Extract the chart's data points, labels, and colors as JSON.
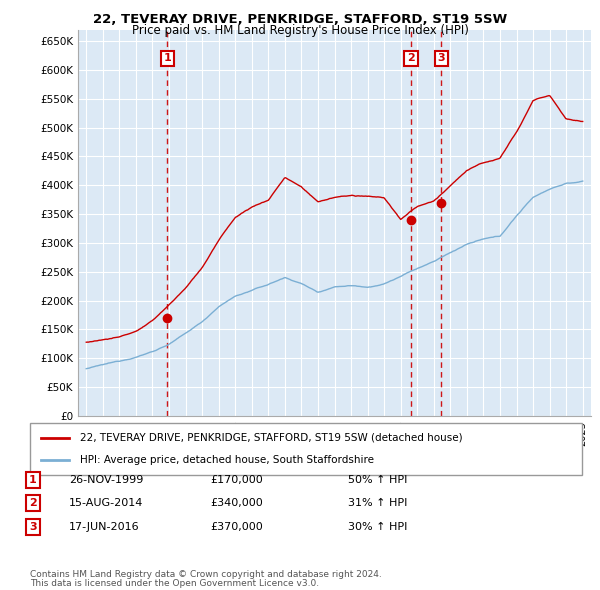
{
  "title": "22, TEVERAY DRIVE, PENKRIDGE, STAFFORD, ST19 5SW",
  "subtitle": "Price paid vs. HM Land Registry's House Price Index (HPI)",
  "property_label": "22, TEVERAY DRIVE, PENKRIDGE, STAFFORD, ST19 5SW (detached house)",
  "hpi_label": "HPI: Average price, detached house, South Staffordshire",
  "ytick_labels": [
    "£0",
    "£50K",
    "£100K",
    "£150K",
    "£200K",
    "£250K",
    "£300K",
    "£350K",
    "£400K",
    "£450K",
    "£500K",
    "£550K",
    "£600K",
    "£650K"
  ],
  "ytick_values": [
    0,
    50000,
    100000,
    150000,
    200000,
    250000,
    300000,
    350000,
    400000,
    450000,
    500000,
    550000,
    600000,
    650000
  ],
  "ymax": 670000,
  "ymin": 0,
  "xmin": 1994.5,
  "xmax": 2025.5,
  "property_color": "#cc0000",
  "hpi_color": "#7bafd4",
  "plot_bg_color": "#dce9f5",
  "background_color": "#ffffff",
  "grid_color": "#ffffff",
  "transactions": [
    {
      "num": 1,
      "date": "26-NOV-1999",
      "price": "£170,000",
      "pct": "50% ↑ HPI",
      "x_year": 1999.9,
      "y_val": 170000
    },
    {
      "num": 2,
      "date": "15-AUG-2014",
      "price": "£340,000",
      "pct": "31% ↑ HPI",
      "x_year": 2014.62,
      "y_val": 340000
    },
    {
      "num": 3,
      "date": "17-JUN-2016",
      "price": "£370,000",
      "pct": "30% ↑ HPI",
      "x_year": 2016.46,
      "y_val": 370000
    }
  ],
  "footer_line1": "Contains HM Land Registry data © Crown copyright and database right 2024.",
  "footer_line2": "This data is licensed under the Open Government Licence v3.0.",
  "hpi_base_years": [
    1995,
    1996,
    1997,
    1998,
    1999,
    2000,
    2001,
    2002,
    2003,
    2004,
    2005,
    2006,
    2007,
    2008,
    2009,
    2010,
    2011,
    2012,
    2013,
    2014,
    2015,
    2016,
    2017,
    2018,
    2019,
    2020,
    2021,
    2022,
    2023,
    2024,
    2025
  ],
  "hpi_base_vals": [
    82000,
    88000,
    94000,
    102000,
    112000,
    125000,
    143000,
    163000,
    190000,
    208000,
    218000,
    228000,
    240000,
    230000,
    215000,
    225000,
    228000,
    226000,
    232000,
    245000,
    258000,
    270000,
    285000,
    300000,
    308000,
    312000,
    348000,
    380000,
    395000,
    405000,
    408000
  ],
  "prop_base_years": [
    1995,
    1996,
    1997,
    1998,
    1999,
    2000,
    2001,
    2002,
    2003,
    2004,
    2005,
    2006,
    2007,
    2008,
    2009,
    2010,
    2011,
    2012,
    2013,
    2014,
    2015,
    2016,
    2017,
    2018,
    2019,
    2020,
    2021,
    2022,
    2023,
    2024,
    2025
  ],
  "prop_base_vals": [
    128000,
    133000,
    138000,
    148000,
    165000,
    193000,
    222000,
    258000,
    305000,
    345000,
    363000,
    375000,
    415000,
    398000,
    372000,
    380000,
    383000,
    380000,
    378000,
    340000,
    362000,
    370000,
    398000,
    425000,
    438000,
    445000,
    490000,
    545000,
    555000,
    515000,
    510000
  ]
}
